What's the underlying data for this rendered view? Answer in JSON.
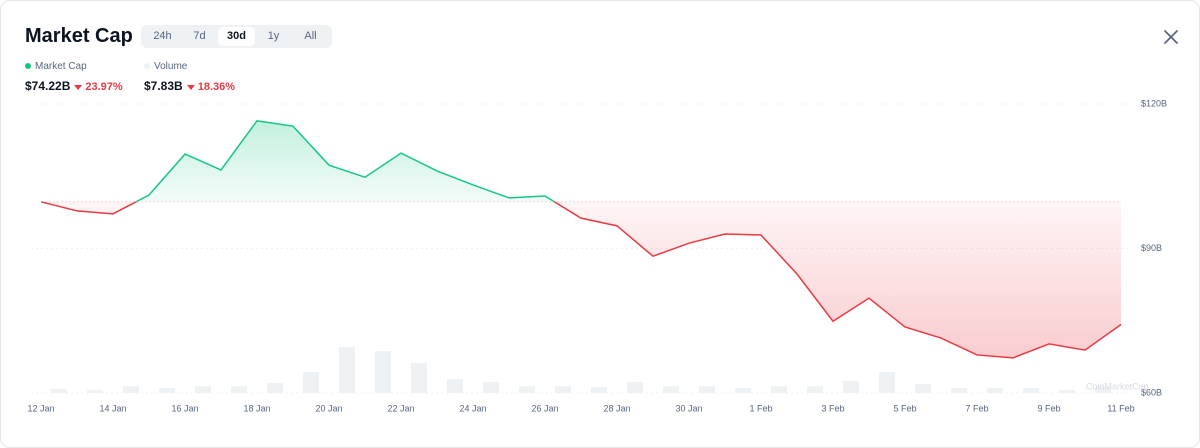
{
  "header": {
    "title": "Market Cap",
    "tabs": [
      "24h",
      "7d",
      "30d",
      "1y",
      "All"
    ],
    "active_tab": 2,
    "summary": [
      {
        "value": "$74.22B",
        "change": "23.97%"
      },
      {
        "value": "$7.83B",
        "change": "18.36%"
      }
    ]
  },
  "chart_data": {
    "type": "area",
    "categories": [
      "12 Jan",
      null,
      "14 Jan",
      null,
      "16 Jan",
      null,
      "18 Jan",
      null,
      "20 Jan",
      null,
      "22 Jan",
      null,
      "24 Jan",
      null,
      "26 Jan",
      null,
      "28 Jan",
      null,
      "30 Jan",
      null,
      "1 Feb",
      null,
      "3 Feb",
      null,
      "5 Feb",
      null,
      "7 Feb",
      null,
      "9 Feb",
      null,
      "11 Feb"
    ],
    "series": [
      {
        "name": "Market Cap",
        "color": "#16c784",
        "down_color": "#ea3943",
        "values": [
          99.7,
          97.8,
          97.2,
          101.1,
          109.6,
          106.3,
          116.5,
          115.4,
          107.3,
          104.8,
          109.8,
          106.1,
          103.2,
          100.5,
          100.9,
          96.3,
          94.7,
          88.4,
          91.1,
          93.0,
          92.8,
          84.7,
          74.9,
          79.7,
          73.7,
          71.4,
          67.9,
          67.3,
          70.2,
          68.9,
          74.22
        ]
      },
      {
        "name": "Volume",
        "color": "#eff2f5",
        "axis": "y2",
        "values": [
          1.4,
          1,
          2.4,
          1.7,
          2.4,
          2.4,
          3.5,
          7.3,
          15.9,
          14.5,
          10.4,
          4.8,
          3.8,
          2.4,
          2.4,
          2.1,
          3.8,
          2.4,
          2.4,
          1.7,
          2.4,
          2.4,
          4.2,
          7.3,
          3.1,
          1.7,
          1.7,
          1.7,
          1,
          2.1,
          null
        ]
      }
    ],
    "ylim": [
      60,
      120
    ],
    "yticks": [
      {
        "value": 60,
        "label": "$60B"
      },
      {
        "value": 90,
        "label": "$90B"
      },
      {
        "value": 120,
        "label": "$120B"
      }
    ],
    "y2lim": [
      0,
      100
    ],
    "grid": true,
    "watermark": "CoinMarketCap"
  }
}
